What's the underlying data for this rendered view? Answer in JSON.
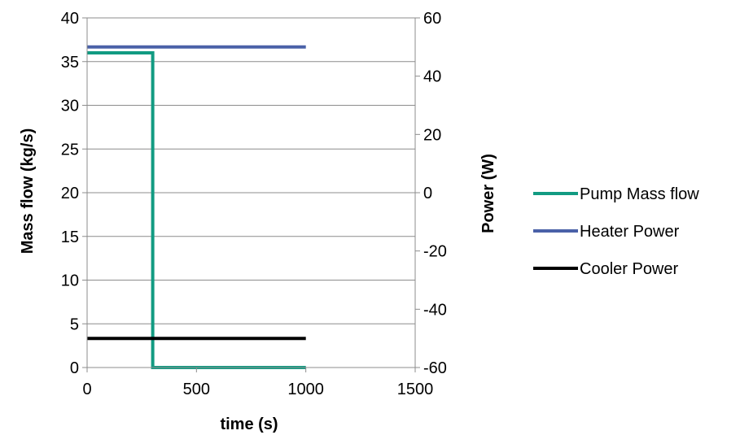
{
  "chart_data": {
    "type": "line",
    "xlabel": "time (s)",
    "ylabel": "Mass flow (kg/s)",
    "y2label": "Power (W)",
    "xlim": [
      0,
      1500
    ],
    "ylim": [
      0,
      40
    ],
    "y2lim": [
      -60,
      60
    ],
    "x_ticks": [
      "0",
      "500",
      "1000",
      "1500"
    ],
    "y_ticks": [
      "0",
      "5",
      "10",
      "15",
      "20",
      "25",
      "30",
      "35",
      "40"
    ],
    "y2_ticks": [
      "-60",
      "-40",
      "-20",
      "0",
      "20",
      "40",
      "60"
    ],
    "grid": "horizontal",
    "legend_position": "right",
    "series": [
      {
        "name": "Pump Mass flow",
        "axis": "left",
        "color": "#129B82",
        "points": [
          [
            0,
            36
          ],
          [
            300,
            36
          ],
          [
            300,
            0
          ],
          [
            1000,
            0
          ]
        ]
      },
      {
        "name": "Heater Power",
        "axis": "right",
        "color": "#4A61A8",
        "points": [
          [
            0,
            50
          ],
          [
            1000,
            50
          ]
        ]
      },
      {
        "name": "Cooler Power",
        "axis": "right",
        "color": "#000000",
        "points": [
          [
            0,
            -50
          ],
          [
            1000,
            -50
          ]
        ]
      }
    ]
  }
}
